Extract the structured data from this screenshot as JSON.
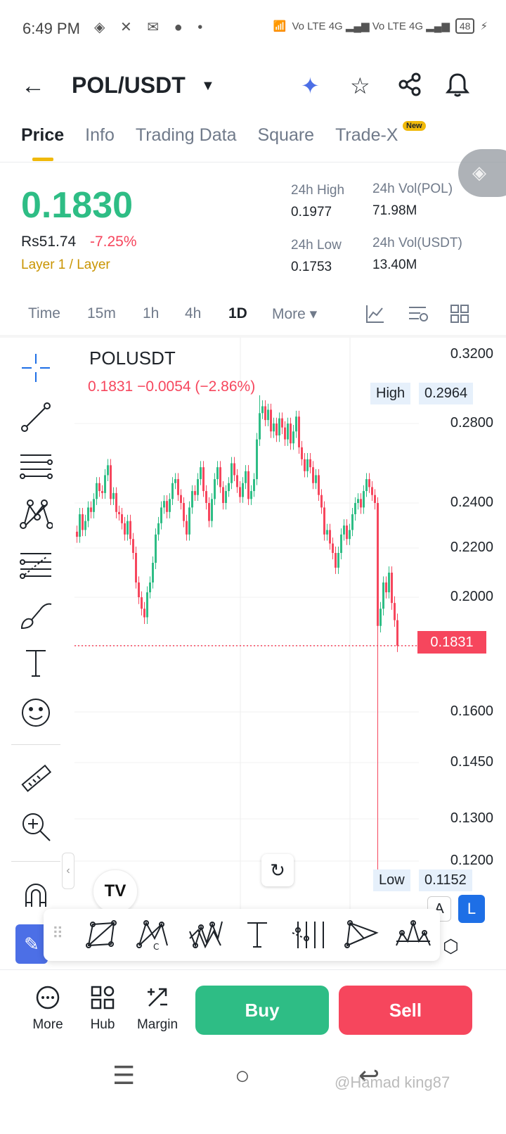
{
  "status_bar": {
    "time": "6:49 PM",
    "left_icons": "◈ ✕ ✉ ● •",
    "network": "Vo LTE 4G ▂▄▆ Vo LTE 4G ▂▄▆",
    "battery": "48"
  },
  "header": {
    "title": "POL/USDT",
    "icons": [
      "back-arrow-icon",
      "ai-sparkle-icon",
      "star-icon",
      "share-icon",
      "bell-icon"
    ]
  },
  "tabs": [
    {
      "label": "Price",
      "active": true
    },
    {
      "label": "Info",
      "active": false
    },
    {
      "label": "Trading Data",
      "active": false
    },
    {
      "label": "Square",
      "active": false
    },
    {
      "label": "Trade-X",
      "active": false
    }
  ],
  "new_badge": "New",
  "price": {
    "last": "0.1830",
    "fiat": "Rs51.74",
    "change": "-7.25%",
    "category": "Layer 1 / Layer",
    "high_label": "24h High",
    "high": "0.1977",
    "low_label": "24h Low",
    "low": "0.1753",
    "vol_base_label": "24h Vol(POL)",
    "vol_base": "71.98M",
    "vol_quote_label": "24h Vol(USDT)",
    "vol_quote": "13.40M"
  },
  "intervals": [
    {
      "label": "Time",
      "active": false
    },
    {
      "label": "15m",
      "active": false
    },
    {
      "label": "1h",
      "active": false
    },
    {
      "label": "4h",
      "active": false
    },
    {
      "label": "1D",
      "active": true
    },
    {
      "label": "More ▾",
      "active": false
    }
  ],
  "chart": {
    "symbol": "POLUSDT",
    "ohlc_line": "0.1831  −0.0054 (−2.86%)",
    "y_ticks": [
      "0.3200",
      "0.2800",
      "0.2400",
      "0.2200",
      "0.2000",
      "0.1600",
      "0.1450",
      "0.1300",
      "0.1200"
    ],
    "high_label": "High",
    "high_value": "0.2964",
    "low_label": "Low",
    "low_value": "0.1152",
    "current_price": "0.1831",
    "scale_a": "A",
    "scale_l": "L",
    "tv_logo": "TV",
    "up_color": "#2ebd85",
    "down_color": "#f6465d"
  },
  "chart_data": {
    "type": "candlestick",
    "symbol": "POLUSDT",
    "interval": "1D",
    "yticks": [
      0.32,
      0.28,
      0.24,
      0.22,
      0.2,
      0.16,
      0.145,
      0.13,
      0.12
    ],
    "high": 0.2964,
    "low": 0.1152,
    "last": 0.1831,
    "closes": [
      0.225,
      0.235,
      0.228,
      0.232,
      0.238,
      0.236,
      0.242,
      0.25,
      0.246,
      0.245,
      0.254,
      0.259,
      0.242,
      0.245,
      0.236,
      0.235,
      0.231,
      0.226,
      0.232,
      0.224,
      0.218,
      0.206,
      0.2,
      0.196,
      0.193,
      0.202,
      0.206,
      0.214,
      0.226,
      0.231,
      0.238,
      0.241,
      0.236,
      0.242,
      0.25,
      0.252,
      0.244,
      0.24,
      0.232,
      0.226,
      0.238,
      0.246,
      0.244,
      0.252,
      0.258,
      0.246,
      0.24,
      0.232,
      0.242,
      0.252,
      0.258,
      0.248,
      0.24,
      0.246,
      0.25,
      0.26,
      0.254,
      0.248,
      0.243,
      0.25,
      0.256,
      0.242,
      0.246,
      0.252,
      0.272,
      0.286,
      0.29,
      0.282,
      0.288,
      0.276,
      0.28,
      0.274,
      0.283,
      0.278,
      0.272,
      0.28,
      0.27,
      0.276,
      0.284,
      0.268,
      0.262,
      0.256,
      0.262,
      0.258,
      0.25,
      0.254,
      0.244,
      0.238,
      0.226,
      0.228,
      0.222,
      0.218,
      0.212,
      0.218,
      0.226,
      0.23,
      0.224,
      0.228,
      0.235,
      0.24,
      0.242,
      0.238,
      0.246,
      0.252,
      0.248,
      0.244,
      0.24,
      0.19,
      0.196,
      0.206,
      0.202,
      0.21,
      0.198,
      0.192,
      0.1831
    ]
  },
  "drawing_toolbar": [
    "rectangle-pattern-icon",
    "cypher-pattern-icon",
    "elliott-wave-icon",
    "text-tool-icon",
    "fib-channel-icon",
    "pitchfork-icon",
    "head-shoulders-icon"
  ],
  "actions": {
    "more": "More",
    "hub": "Hub",
    "margin": "Margin",
    "buy": "Buy",
    "sell": "Sell"
  },
  "watermark": "@Hamad king87"
}
